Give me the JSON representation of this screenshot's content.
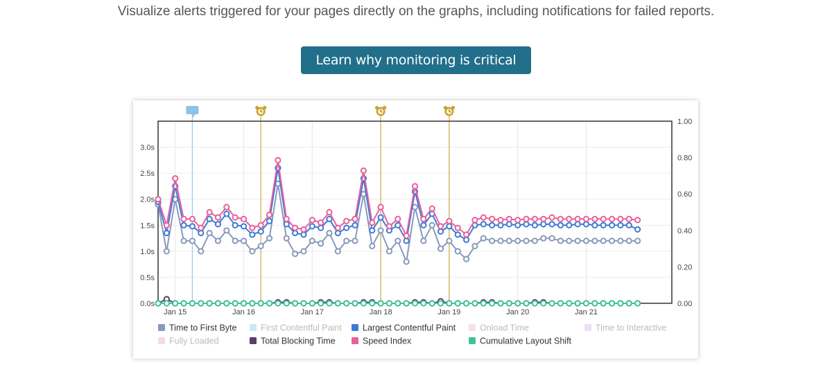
{
  "intro_text": "Visualize alerts triggered for your pages directly on the graphs, including notifications for failed reports.",
  "cta_label": "Learn why monitoring is critical",
  "chart_data": {
    "type": "line",
    "x_dates": [
      "Jan 14 18:00",
      "Jan 14 21:00",
      "Jan 15 00:00",
      "Jan 15 03:00",
      "Jan 15 06:00",
      "Jan 15 09:00",
      "Jan 15 12:00",
      "Jan 15 15:00",
      "Jan 15 18:00",
      "Jan 15 21:00",
      "Jan 16 00:00",
      "Jan 16 03:00",
      "Jan 16 06:00",
      "Jan 16 09:00",
      "Jan 16 12:00",
      "Jan 16 15:00",
      "Jan 16 18:00",
      "Jan 16 21:00",
      "Jan 17 00:00",
      "Jan 17 03:00",
      "Jan 17 06:00",
      "Jan 17 09:00",
      "Jan 17 12:00",
      "Jan 17 15:00",
      "Jan 17 18:00",
      "Jan 17 21:00",
      "Jan 18 00:00",
      "Jan 18 03:00",
      "Jan 18 06:00",
      "Jan 18 09:00",
      "Jan 18 12:00",
      "Jan 18 15:00",
      "Jan 18 18:00",
      "Jan 18 21:00",
      "Jan 19 00:00",
      "Jan 19 03:00",
      "Jan 19 06:00",
      "Jan 19 09:00",
      "Jan 19 12:00",
      "Jan 19 15:00",
      "Jan 19 18:00",
      "Jan 19 21:00",
      "Jan 20 00:00",
      "Jan 20 03:00",
      "Jan 20 06:00",
      "Jan 20 09:00",
      "Jan 20 12:00",
      "Jan 20 15:00",
      "Jan 20 18:00",
      "Jan 20 21:00",
      "Jan 21 00:00",
      "Jan 21 03:00",
      "Jan 21 06:00",
      "Jan 21 09:00",
      "Jan 21 12:00",
      "Jan 21 15:00",
      "Jan 21 18:00"
    ],
    "x_ticks": [
      {
        "date": "Jan 15 00:00",
        "label": "Jan 15"
      },
      {
        "date": "Jan 16 00:00",
        "label": "Jan 16"
      },
      {
        "date": "Jan 17 00:00",
        "label": "Jan 17"
      },
      {
        "date": "Jan 18 00:00",
        "label": "Jan 18"
      },
      {
        "date": "Jan 19 00:00",
        "label": "Jan 19"
      },
      {
        "date": "Jan 20 00:00",
        "label": "Jan 20"
      },
      {
        "date": "Jan 21 00:00",
        "label": "Jan 21"
      }
    ],
    "y_left": {
      "ticks": [
        "0.0s",
        "0.5s",
        "1.0s",
        "1.5s",
        "2.0s",
        "2.5s",
        "3.0s"
      ],
      "min": 0,
      "max": 3.5
    },
    "y_right": {
      "ticks": [
        "0.00",
        "0.20",
        "0.40",
        "0.60",
        "0.80",
        "1.00"
      ],
      "min": 0,
      "max": 1.0
    },
    "grid": true,
    "series": [
      {
        "name": "Time to First Byte",
        "color": "#8899bb",
        "visible": true,
        "axis": "left",
        "values": [
          1.9,
          1.0,
          2.0,
          1.2,
          1.2,
          1.0,
          1.35,
          1.2,
          1.4,
          1.2,
          1.2,
          1.0,
          1.1,
          1.25,
          2.3,
          1.25,
          0.95,
          1.0,
          1.2,
          1.15,
          1.35,
          1.0,
          1.2,
          1.2,
          2.1,
          1.1,
          1.4,
          1.0,
          1.2,
          0.8,
          1.85,
          1.2,
          1.5,
          1.05,
          1.2,
          1.0,
          0.85,
          1.1,
          1.25,
          1.2,
          1.2,
          1.2,
          1.2,
          1.2,
          1.2,
          1.25,
          1.25,
          1.2,
          1.2,
          1.2,
          1.2,
          1.2,
          1.2,
          1.2,
          1.2,
          1.2,
          1.2
        ]
      },
      {
        "name": "First Contentful Paint",
        "color": "#9fd6ec",
        "visible": false,
        "axis": "left",
        "values": []
      },
      {
        "name": "Largest Contentful Paint",
        "color": "#3d7ad6",
        "visible": true,
        "axis": "left",
        "values": [
          1.95,
          1.35,
          2.25,
          1.5,
          1.48,
          1.35,
          1.62,
          1.52,
          1.72,
          1.5,
          1.48,
          1.32,
          1.38,
          1.58,
          2.6,
          1.52,
          1.35,
          1.32,
          1.48,
          1.45,
          1.62,
          1.35,
          1.45,
          1.5,
          2.4,
          1.4,
          1.65,
          1.4,
          1.5,
          1.2,
          2.15,
          1.5,
          1.72,
          1.38,
          1.48,
          1.32,
          1.22,
          1.5,
          1.52,
          1.5,
          1.5,
          1.52,
          1.5,
          1.52,
          1.5,
          1.52,
          1.52,
          1.5,
          1.5,
          1.52,
          1.52,
          1.5,
          1.5,
          1.5,
          1.5,
          1.5,
          1.42
        ]
      },
      {
        "name": "Onload Time",
        "color": "#ecc6d8",
        "visible": false,
        "axis": "left",
        "values": []
      },
      {
        "name": "Time to Interactive",
        "color": "#dcc6e8",
        "visible": false,
        "axis": "left",
        "values": []
      },
      {
        "name": "Fully Loaded",
        "color": "#f0b8d0",
        "visible": false,
        "axis": "left",
        "values": []
      },
      {
        "name": "Total Blocking Time",
        "color": "#5a3e6e",
        "visible": true,
        "axis": "left",
        "values": [
          0.0,
          0.08,
          0.0,
          0.0,
          0.0,
          0.0,
          0.0,
          0.0,
          0.0,
          0.0,
          0.0,
          0.0,
          0.0,
          0.0,
          0.02,
          0.02,
          0.0,
          0.0,
          0.0,
          0.02,
          0.02,
          0.0,
          0.0,
          0.0,
          0.02,
          0.02,
          0.0,
          0.0,
          0.0,
          0.0,
          0.02,
          0.02,
          0.0,
          0.04,
          0.0,
          0.0,
          0.0,
          0.0,
          0.02,
          0.02,
          0.0,
          0.0,
          0.0,
          0.0,
          0.02,
          0.02,
          0.0,
          0.0,
          0.0,
          0.0,
          0.0,
          0.0,
          0.0,
          0.0,
          0.0,
          0.0,
          0.0
        ]
      },
      {
        "name": "Speed Index",
        "color": "#e8609a",
        "visible": true,
        "axis": "left",
        "values": [
          2.0,
          1.5,
          2.4,
          1.62,
          1.62,
          1.45,
          1.75,
          1.65,
          1.85,
          1.65,
          1.62,
          1.45,
          1.5,
          1.7,
          2.75,
          1.62,
          1.45,
          1.42,
          1.6,
          1.55,
          1.75,
          1.45,
          1.58,
          1.62,
          2.55,
          1.55,
          1.85,
          1.48,
          1.62,
          1.3,
          2.25,
          1.62,
          1.82,
          1.48,
          1.58,
          1.45,
          1.32,
          1.6,
          1.65,
          1.62,
          1.6,
          1.62,
          1.6,
          1.62,
          1.62,
          1.62,
          1.65,
          1.62,
          1.62,
          1.62,
          1.62,
          1.62,
          1.62,
          1.62,
          1.62,
          1.62,
          1.6
        ]
      },
      {
        "name": "Cumulative Layout Shift",
        "color": "#3fc49a",
        "visible": true,
        "axis": "right",
        "values": [
          0,
          0,
          0,
          0,
          0,
          0,
          0,
          0,
          0,
          0,
          0,
          0,
          0,
          0,
          0,
          0,
          0,
          0,
          0,
          0,
          0,
          0,
          0,
          0,
          0,
          0,
          0,
          0,
          0,
          0,
          0,
          0,
          0,
          0,
          0,
          0,
          0,
          0,
          0,
          0,
          0,
          0,
          0,
          0,
          0,
          0,
          0,
          0,
          0,
          0,
          0,
          0,
          0,
          0,
          0,
          0,
          0
        ]
      }
    ],
    "annotations": [
      {
        "type": "comment",
        "icon": "comment-icon",
        "date": "Jan 15 06:00",
        "color": "#8ec1e6"
      },
      {
        "type": "alert",
        "icon": "alarm-clock-icon",
        "date": "Jan 16 06:00",
        "color": "#c8a230"
      },
      {
        "type": "alert",
        "icon": "alarm-clock-icon",
        "date": "Jan 18 00:00",
        "color": "#c8a230"
      },
      {
        "type": "alert",
        "icon": "alarm-clock-icon",
        "date": "Jan 19 00:00",
        "color": "#c8a230"
      }
    ]
  }
}
